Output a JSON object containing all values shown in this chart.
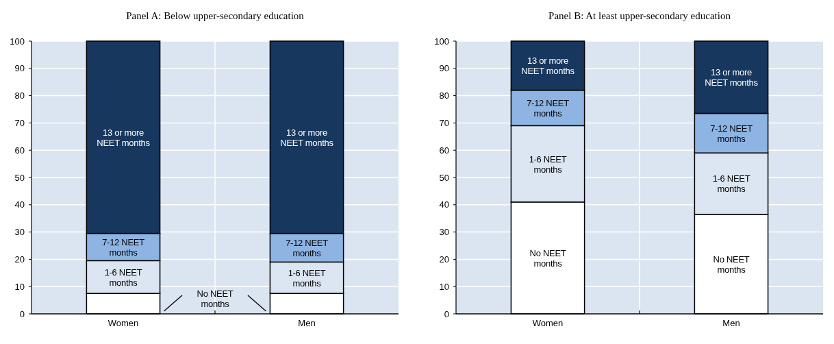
{
  "chart_data": [
    {
      "type": "bar",
      "title": "Panel A: Below upper-secondary education",
      "categories": [
        "Women",
        "Men"
      ],
      "stacked": true,
      "ylim": [
        0,
        100
      ],
      "yticks": [
        0,
        10,
        20,
        30,
        40,
        50,
        60,
        70,
        80,
        90,
        100
      ],
      "grid": true,
      "series": [
        {
          "name": "No NEET months",
          "color": "#ffffff",
          "values": [
            7.5,
            7.5
          ]
        },
        {
          "name": "1-6 NEET months",
          "color": "#dce6f2",
          "values": [
            12,
            11.5
          ]
        },
        {
          "name": "7-12 NEET months",
          "color": "#8db4e2",
          "values": [
            10,
            10.5
          ]
        },
        {
          "name": "13 or more NEET months",
          "color": "#17375e",
          "values": [
            70.5,
            70.5
          ]
        }
      ]
    },
    {
      "type": "bar",
      "title": "Panel B: At least upper-secondary education",
      "categories": [
        "Women",
        "Men"
      ],
      "stacked": true,
      "ylim": [
        0,
        100
      ],
      "yticks": [
        0,
        10,
        20,
        30,
        40,
        50,
        60,
        70,
        80,
        90,
        100
      ],
      "grid": true,
      "series": [
        {
          "name": "No NEET months",
          "color": "#ffffff",
          "values": [
            41,
            36.5
          ]
        },
        {
          "name": "1-6 NEET months",
          "color": "#dce6f2",
          "values": [
            28,
            22.5
          ]
        },
        {
          "name": "7-12 NEET months",
          "color": "#8db4e2",
          "values": [
            13,
            14.5
          ]
        },
        {
          "name": "13 or more NEET months",
          "color": "#17375e",
          "values": [
            18,
            26.5
          ]
        }
      ]
    }
  ]
}
